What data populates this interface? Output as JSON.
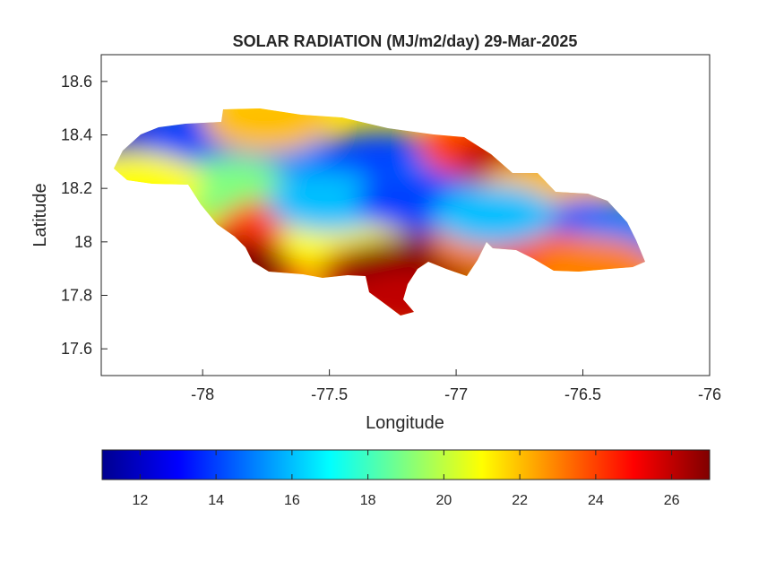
{
  "chart_data": {
    "type": "heatmap",
    "title": "SOLAR RADIATION (MJ/m2/day) 29-Mar-2025",
    "xlabel": "Longitude",
    "ylabel": "Latitude",
    "xlim": [
      -78.4,
      -76.0
    ],
    "ylim": [
      17.5,
      18.7
    ],
    "xticks": [
      "-78",
      "-77.5",
      "-77",
      "-76.5",
      "-76"
    ],
    "yticks": [
      "17.6",
      "17.8",
      "18",
      "18.2",
      "18.4",
      "18.6"
    ],
    "colorbar": {
      "colormap": "jet",
      "range": [
        11,
        27
      ],
      "ticks": [
        "12",
        "14",
        "16",
        "18",
        "20",
        "22",
        "24",
        "26"
      ],
      "position": "bottom"
    },
    "grid": false,
    "regions": [
      {
        "lon": -78.2,
        "lat": 18.38,
        "value": 12
      },
      {
        "lon": -78.0,
        "lat": 18.4,
        "value": 14
      },
      {
        "lon": -77.65,
        "lat": 18.3,
        "value": 15
      },
      {
        "lon": -77.3,
        "lat": 18.3,
        "value": 14
      },
      {
        "lon": -77.05,
        "lat": 18.2,
        "value": 15
      },
      {
        "lon": -76.9,
        "lat": 18.35,
        "value": 24
      },
      {
        "lon": -76.75,
        "lat": 18.3,
        "value": 26
      },
      {
        "lon": -76.65,
        "lat": 18.2,
        "value": 22
      },
      {
        "lon": -76.45,
        "lat": 18.05,
        "value": 14
      },
      {
        "lon": -76.35,
        "lat": 18.0,
        "value": 15
      },
      {
        "lon": -77.75,
        "lat": 18.45,
        "value": 22
      },
      {
        "lon": -77.9,
        "lat": 18.2,
        "value": 19
      },
      {
        "lon": -78.25,
        "lat": 18.22,
        "value": 21
      },
      {
        "lon": -77.7,
        "lat": 18.05,
        "value": 24
      },
      {
        "lon": -77.8,
        "lat": 17.9,
        "value": 25
      },
      {
        "lon": -77.9,
        "lat": 17.9,
        "value": 27
      },
      {
        "lon": -77.45,
        "lat": 18.0,
        "value": 21
      },
      {
        "lon": -77.3,
        "lat": 17.88,
        "value": 26
      },
      {
        "lon": -77.2,
        "lat": 17.9,
        "value": 27
      },
      {
        "lon": -77.0,
        "lat": 17.95,
        "value": 27
      },
      {
        "lon": -76.85,
        "lat": 18.0,
        "value": 23
      },
      {
        "lon": -76.6,
        "lat": 17.92,
        "value": 24
      },
      {
        "lon": -76.45,
        "lat": 17.9,
        "value": 23
      },
      {
        "lon": -77.2,
        "lat": 17.78,
        "value": 26
      },
      {
        "lon": -77.5,
        "lat": 18.15,
        "value": 16
      },
      {
        "lon": -77.15,
        "lat": 18.15,
        "value": 14
      },
      {
        "lon": -76.85,
        "lat": 18.1,
        "value": 16
      }
    ]
  }
}
